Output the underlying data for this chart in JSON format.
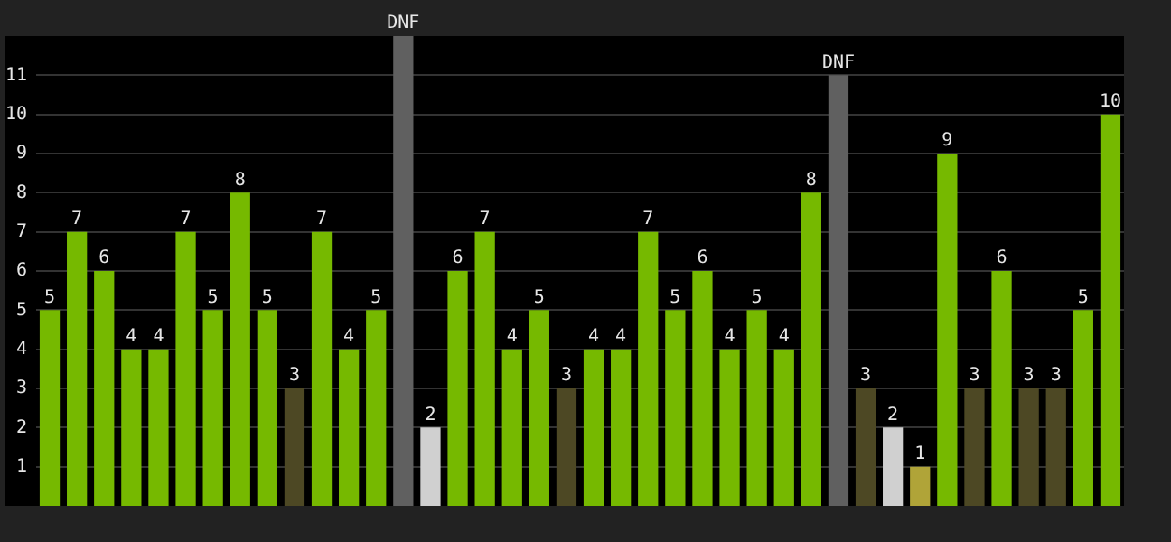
{
  "chart_data": {
    "type": "bar",
    "categories": [
      null,
      null,
      null,
      null,
      null,
      null,
      null,
      null,
      null,
      null,
      null,
      null,
      null,
      null,
      null,
      null,
      null,
      null,
      null,
      null,
      null,
      null,
      null,
      null,
      null,
      null,
      null,
      null,
      null,
      null,
      null,
      null,
      null,
      null,
      null,
      null,
      null,
      null,
      null,
      null
    ],
    "values": [
      5,
      7,
      6,
      4,
      4,
      7,
      5,
      8,
      5,
      3,
      7,
      4,
      5,
      12,
      2,
      6,
      7,
      4,
      5,
      3,
      4,
      4,
      7,
      5,
      6,
      4,
      5,
      4,
      8,
      11,
      3,
      2,
      1,
      9,
      3,
      6,
      3,
      3,
      5,
      10
    ],
    "value_labels": [
      "5",
      "7",
      "6",
      "4",
      "4",
      "7",
      "5",
      "8",
      "5",
      "3",
      "7",
      "4",
      "5",
      "DNF",
      "2",
      "6",
      "7",
      "4",
      "5",
      "3",
      "4",
      "4",
      "7",
      "5",
      "6",
      "4",
      "5",
      "4",
      "8",
      "DNF",
      "3",
      "2",
      "1",
      "9",
      "3",
      "6",
      "3",
      "3",
      "5",
      "10"
    ],
    "colors": [
      "#76b900",
      "#76b900",
      "#76b900",
      "#76b900",
      "#76b900",
      "#76b900",
      "#76b900",
      "#76b900",
      "#76b900",
      "#4d4824",
      "#76b900",
      "#76b900",
      "#76b900",
      "#606060",
      "#d0d0d0",
      "#76b900",
      "#76b900",
      "#76b900",
      "#76b900",
      "#4d4824",
      "#76b900",
      "#76b900",
      "#76b900",
      "#76b900",
      "#76b900",
      "#76b900",
      "#76b900",
      "#76b900",
      "#76b900",
      "#606060",
      "#4d4824",
      "#d0d0d0",
      "#b0a438",
      "#76b900",
      "#4d4824",
      "#76b900",
      "#4d4824",
      "#4d4824",
      "#76b900",
      "#76b900"
    ],
    "ylim": [
      0,
      12
    ],
    "yticks": [
      1,
      2,
      3,
      4,
      5,
      6,
      7,
      8,
      9,
      10,
      11
    ],
    "grid": "y",
    "legend": false,
    "tick_labels": "y"
  }
}
